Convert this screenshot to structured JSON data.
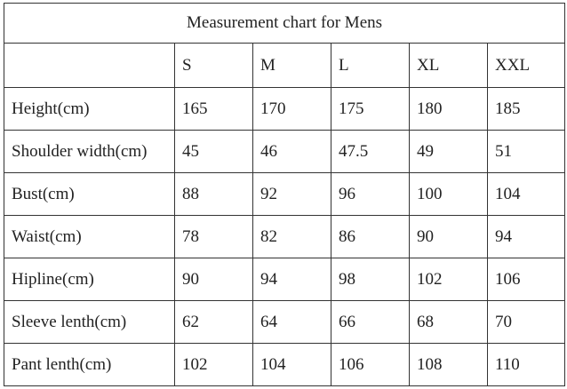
{
  "table": {
    "title": "Measurement chart for Mens",
    "columns": [
      "S",
      "M",
      "L",
      "XL",
      "XXL"
    ],
    "rows": [
      {
        "label": "Height(cm)",
        "values": [
          "165",
          "170",
          "175",
          "180",
          "185"
        ]
      },
      {
        "label": "Shoulder width(cm)",
        "values": [
          "45",
          "46",
          "47.5",
          "49",
          "51"
        ]
      },
      {
        "label": "Bust(cm)",
        "values": [
          "88",
          "92",
          "96",
          "100",
          "104"
        ]
      },
      {
        "label": "Waist(cm)",
        "values": [
          "78",
          "82",
          "86",
          "90",
          "94"
        ]
      },
      {
        "label": "Hipline(cm)",
        "values": [
          "90",
          "94",
          "98",
          "102",
          "106"
        ]
      },
      {
        "label": "Sleeve lenth(cm)",
        "values": [
          "62",
          "64",
          "66",
          "68",
          "70"
        ]
      },
      {
        "label": "Pant lenth(cm)",
        "values": [
          "102",
          "104",
          "106",
          "108",
          "110"
        ]
      }
    ]
  }
}
